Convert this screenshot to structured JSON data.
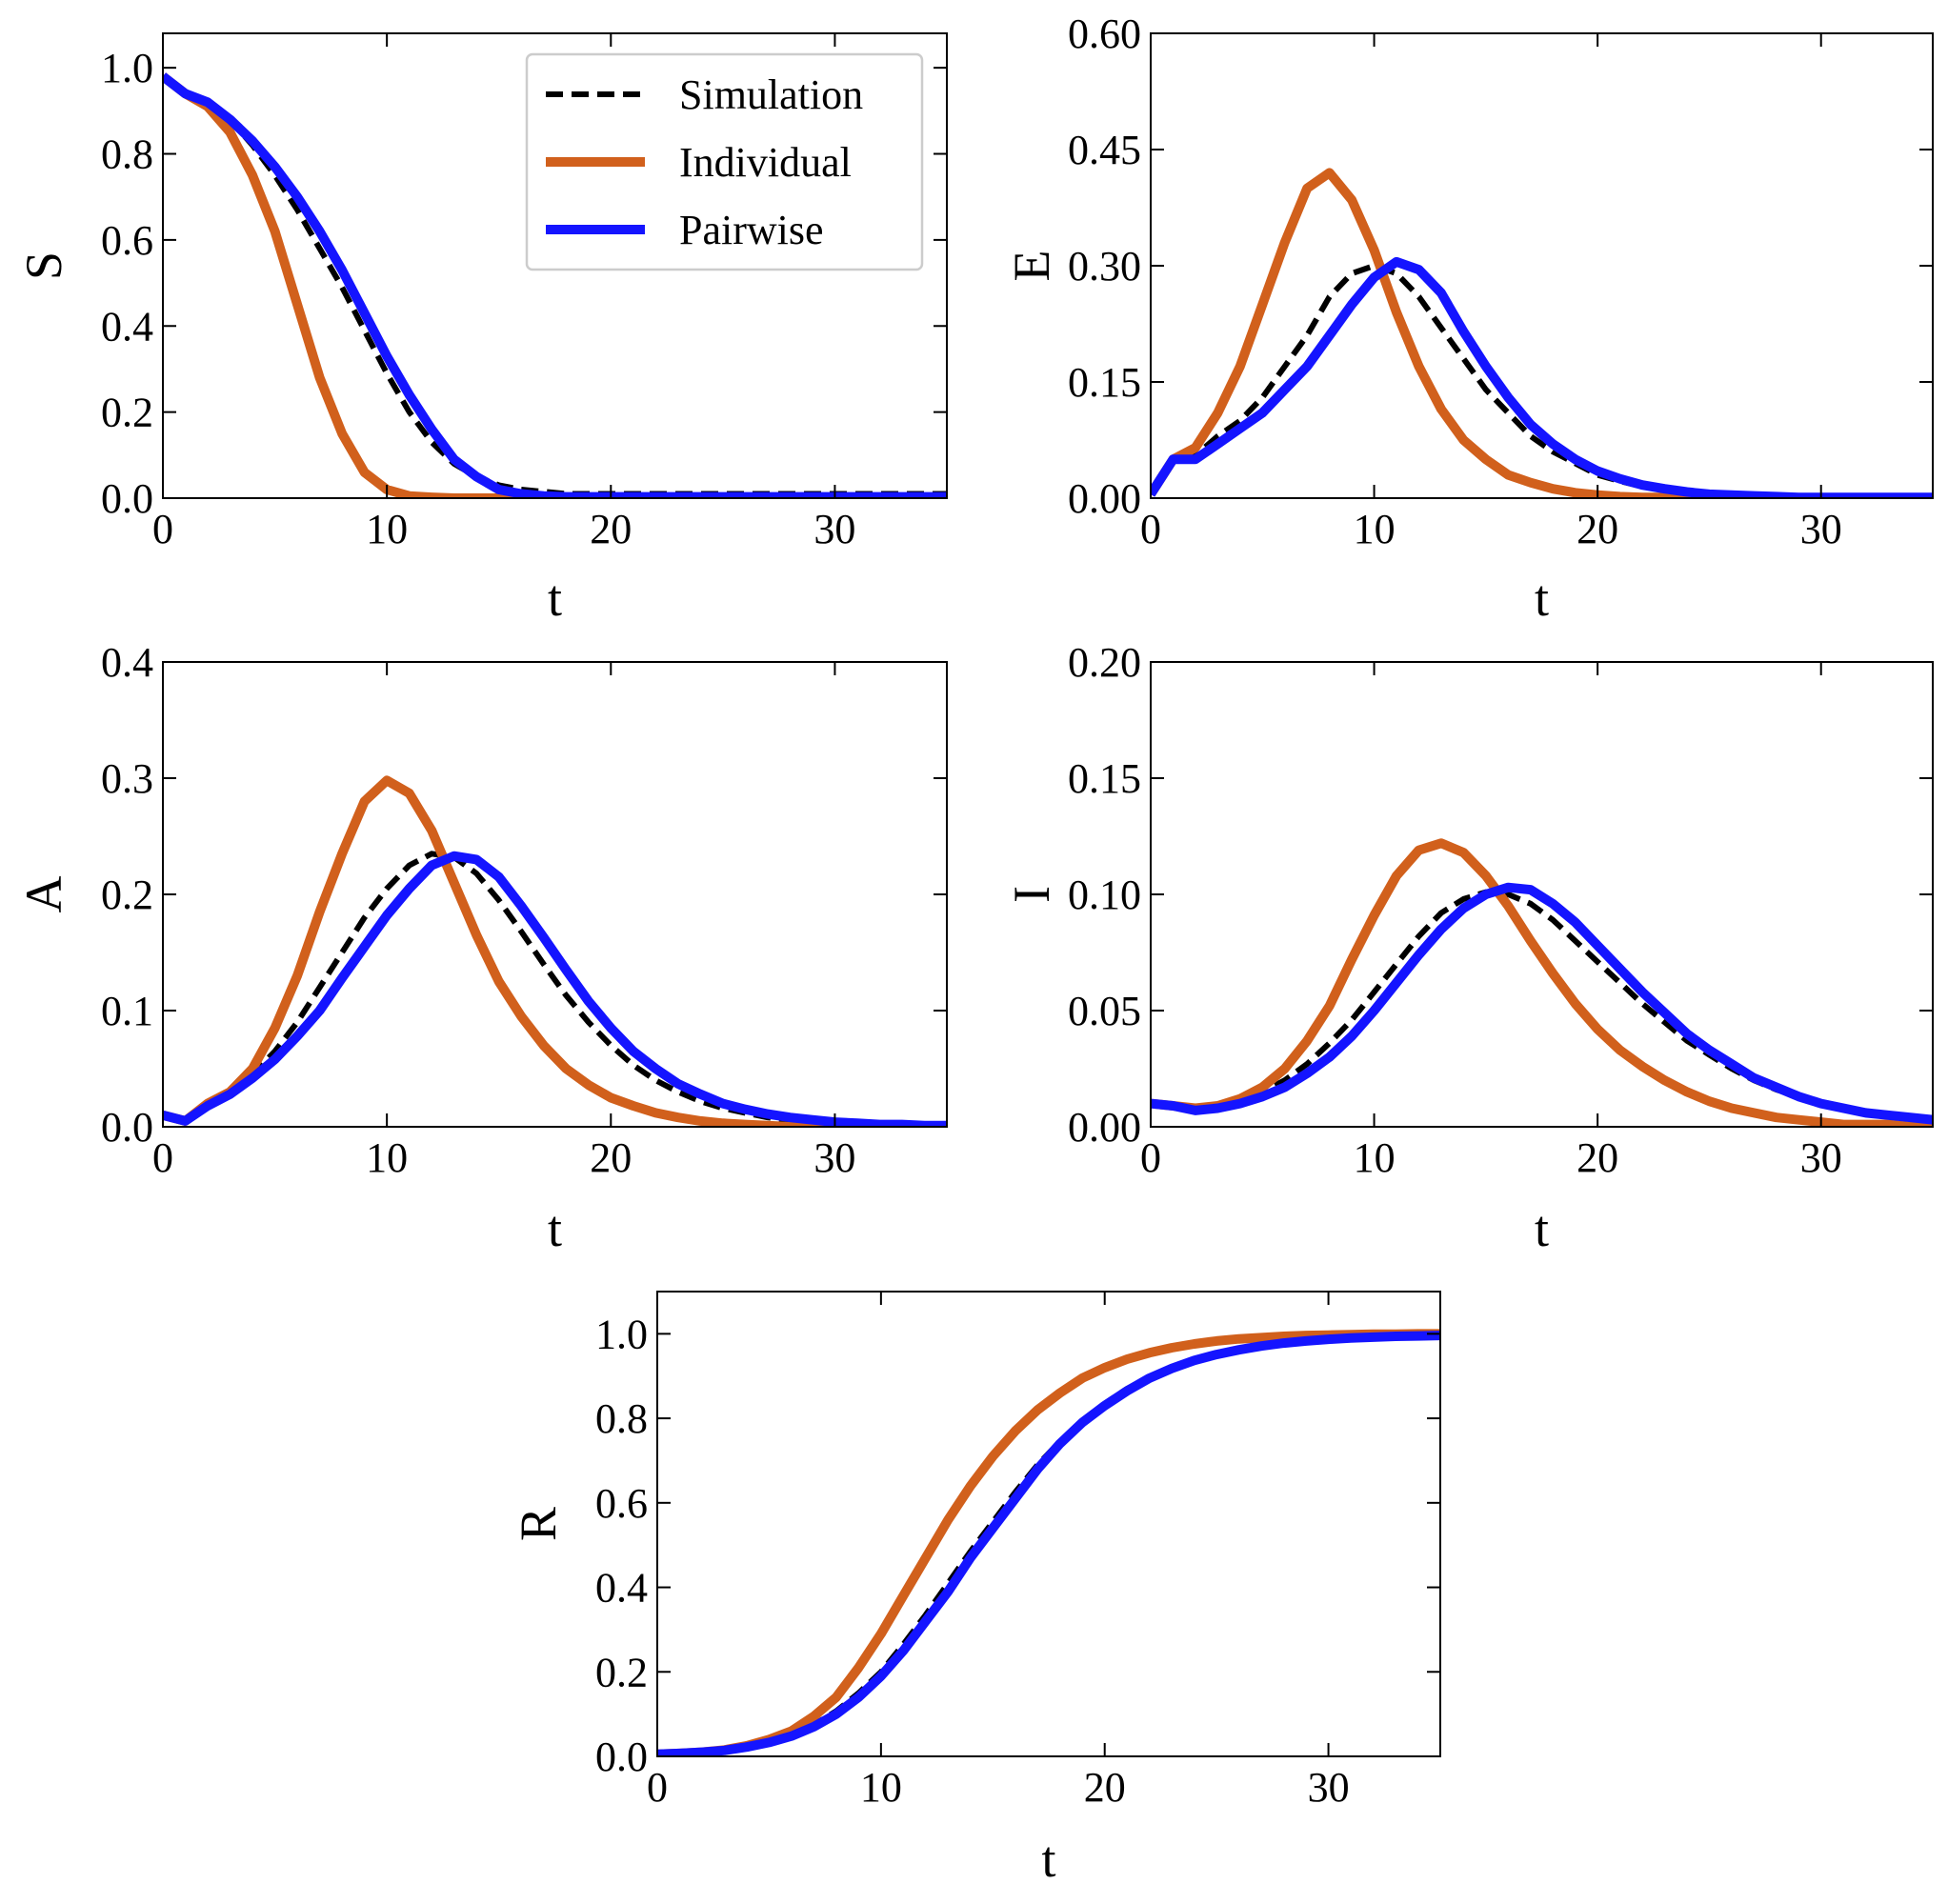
{
  "chart_data": [
    {
      "type": "line",
      "xlabel": "t",
      "ylabel": "S",
      "x": [
        0,
        1,
        2,
        3,
        4,
        5,
        6,
        7,
        8,
        9,
        10,
        11,
        12,
        13,
        14,
        15,
        16,
        17,
        18,
        19,
        20,
        21,
        22,
        23,
        24,
        25,
        26,
        27,
        28,
        29,
        30,
        31,
        32,
        33,
        34,
        35
      ],
      "xlim": [
        0,
        35
      ],
      "ylim": [
        0,
        1.08
      ],
      "xticks": [
        0,
        10,
        20,
        30
      ],
      "yticks": [
        {
          "value": 0,
          "label": "0.0"
        },
        0.2,
        0.4,
        0.6,
        0.8,
        {
          "value": 1,
          "label": "1.0"
        }
      ],
      "legend": "upper right",
      "series": [
        {
          "name": "Simulation",
          "color": "#000000",
          "linestyle": "dashed",
          "values": [
            0.98,
            0.94,
            0.92,
            0.88,
            0.82,
            0.75,
            0.67,
            0.58,
            0.49,
            0.39,
            0.29,
            0.2,
            0.13,
            0.08,
            0.05,
            0.03,
            0.02,
            0.015,
            0.01,
            0.01,
            0.01,
            0.01,
            0.01,
            0.01,
            0.01,
            0.01,
            0.01,
            0.01,
            0.01,
            0.01,
            0.01,
            0.01,
            0.01,
            0.01,
            0.01,
            0.01
          ]
        },
        {
          "name": "Individual",
          "color": "#d1601c",
          "linestyle": "solid",
          "values": [
            0.98,
            0.94,
            0.91,
            0.85,
            0.75,
            0.62,
            0.45,
            0.28,
            0.15,
            0.06,
            0.02,
            0.005,
            0.002,
            0,
            0,
            0,
            0,
            0,
            0,
            0,
            0,
            0,
            0,
            0,
            0,
            0,
            0,
            0,
            0,
            0,
            0,
            0,
            0,
            0,
            0,
            0
          ]
        },
        {
          "name": "Pairwise",
          "color": "#1414ff",
          "linestyle": "solid",
          "values": [
            0.98,
            0.94,
            0.92,
            0.88,
            0.83,
            0.77,
            0.7,
            0.62,
            0.53,
            0.43,
            0.33,
            0.24,
            0.16,
            0.09,
            0.05,
            0.02,
            0.01,
            0.005,
            0.003,
            0.003,
            0.003,
            0.003,
            0.003,
            0.003,
            0.003,
            0.003,
            0.003,
            0.003,
            0.003,
            0.003,
            0.003,
            0.003,
            0.003,
            0.003,
            0.003,
            0.003
          ]
        }
      ]
    },
    {
      "type": "line",
      "xlabel": "t",
      "ylabel": "E",
      "x": [
        0,
        1,
        2,
        3,
        4,
        5,
        6,
        7,
        8,
        9,
        10,
        11,
        12,
        13,
        14,
        15,
        16,
        17,
        18,
        19,
        20,
        21,
        22,
        23,
        24,
        25,
        26,
        27,
        28,
        29,
        30,
        31,
        32,
        33,
        34,
        35
      ],
      "xlim": [
        0,
        35
      ],
      "ylim": [
        0,
        0.6
      ],
      "xticks": [
        0,
        10,
        20,
        30
      ],
      "yticks": [
        {
          "value": 0,
          "label": "0.00"
        },
        0.15,
        {
          "value": 0.3,
          "label": "0.30"
        },
        0.45,
        {
          "value": 0.6,
          "label": "0.60"
        }
      ],
      "series": [
        {
          "color": "#000000",
          "linestyle": "dashed",
          "values": [
            0.005,
            0.05,
            0.055,
            0.08,
            0.1,
            0.13,
            0.17,
            0.21,
            0.26,
            0.29,
            0.3,
            0.29,
            0.26,
            0.22,
            0.18,
            0.14,
            0.11,
            0.08,
            0.06,
            0.045,
            0.03,
            0.022,
            0.015,
            0.01,
            0.007,
            0.005,
            0.003,
            0.002,
            0.002,
            0.001,
            0.001,
            0.001,
            0.001,
            0.001,
            0.001,
            0.001
          ]
        },
        {
          "color": "#d1601c",
          "linestyle": "solid",
          "values": [
            0.005,
            0.05,
            0.065,
            0.11,
            0.17,
            0.25,
            0.33,
            0.4,
            0.42,
            0.385,
            0.32,
            0.24,
            0.17,
            0.115,
            0.075,
            0.05,
            0.03,
            0.02,
            0.012,
            0.007,
            0.004,
            0.002,
            0.001,
            0.001,
            0,
            0,
            0,
            0,
            0,
            0,
            0,
            0,
            0,
            0,
            0,
            0
          ]
        },
        {
          "color": "#1414ff",
          "linestyle": "solid",
          "values": [
            0.005,
            0.05,
            0.05,
            0.07,
            0.09,
            0.11,
            0.14,
            0.17,
            0.21,
            0.25,
            0.285,
            0.305,
            0.295,
            0.265,
            0.215,
            0.17,
            0.13,
            0.095,
            0.07,
            0.05,
            0.035,
            0.025,
            0.017,
            0.012,
            0.008,
            0.005,
            0.004,
            0.003,
            0.002,
            0.001,
            0.001,
            0.001,
            0.001,
            0.001,
            0.001,
            0.001
          ]
        }
      ]
    },
    {
      "type": "line",
      "xlabel": "t",
      "ylabel": "A",
      "x": [
        0,
        1,
        2,
        3,
        4,
        5,
        6,
        7,
        8,
        9,
        10,
        11,
        12,
        13,
        14,
        15,
        16,
        17,
        18,
        19,
        20,
        21,
        22,
        23,
        24,
        25,
        26,
        27,
        28,
        29,
        30,
        31,
        32,
        33,
        34,
        35
      ],
      "xlim": [
        0,
        35
      ],
      "ylim": [
        0,
        0.4
      ],
      "xticks": [
        0,
        10,
        20,
        30
      ],
      "yticks": [
        {
          "value": 0,
          "label": "0.0"
        },
        0.1,
        0.2,
        0.3,
        0.4
      ],
      "series": [
        {
          "color": "#000000",
          "linestyle": "dashed",
          "values": [
            0.01,
            0.005,
            0.02,
            0.03,
            0.045,
            0.065,
            0.09,
            0.12,
            0.15,
            0.18,
            0.205,
            0.225,
            0.235,
            0.232,
            0.218,
            0.195,
            0.168,
            0.14,
            0.113,
            0.09,
            0.07,
            0.053,
            0.04,
            0.03,
            0.022,
            0.016,
            0.012,
            0.008,
            0.006,
            0.004,
            0.003,
            0.002,
            0.002,
            0.001,
            0.001,
            0.001
          ]
        },
        {
          "color": "#d1601c",
          "linestyle": "solid",
          "values": [
            0.01,
            0.005,
            0.02,
            0.03,
            0.05,
            0.085,
            0.13,
            0.185,
            0.235,
            0.28,
            0.298,
            0.287,
            0.255,
            0.21,
            0.165,
            0.125,
            0.095,
            0.07,
            0.05,
            0.036,
            0.025,
            0.018,
            0.012,
            0.008,
            0.005,
            0.003,
            0.002,
            0.001,
            0,
            0,
            0,
            0,
            0,
            0,
            0,
            0
          ]
        },
        {
          "color": "#1414ff",
          "linestyle": "solid",
          "values": [
            0.01,
            0.005,
            0.018,
            0.028,
            0.042,
            0.058,
            0.078,
            0.1,
            0.128,
            0.155,
            0.182,
            0.205,
            0.225,
            0.233,
            0.23,
            0.215,
            0.19,
            0.163,
            0.135,
            0.108,
            0.085,
            0.065,
            0.05,
            0.037,
            0.028,
            0.02,
            0.015,
            0.011,
            0.008,
            0.006,
            0.004,
            0.003,
            0.002,
            0.002,
            0.001,
            0.001
          ]
        }
      ]
    },
    {
      "type": "line",
      "xlabel": "t",
      "ylabel": "I",
      "x": [
        0,
        1,
        2,
        3,
        4,
        5,
        6,
        7,
        8,
        9,
        10,
        11,
        12,
        13,
        14,
        15,
        16,
        17,
        18,
        19,
        20,
        21,
        22,
        23,
        24,
        25,
        26,
        27,
        28,
        29,
        30,
        31,
        32,
        33,
        34,
        35
      ],
      "xlim": [
        0,
        35
      ],
      "ylim": [
        0,
        0.2
      ],
      "xticks": [
        0,
        10,
        20,
        30
      ],
      "yticks": [
        {
          "value": 0,
          "label": "0.00"
        },
        0.05,
        {
          "value": 0.1,
          "label": "0.10"
        },
        0.15,
        {
          "value": 0.2,
          "label": "0.20"
        }
      ],
      "series": [
        {
          "color": "#000000",
          "linestyle": "dashed",
          "values": [
            0.01,
            0.009,
            0.008,
            0.009,
            0.011,
            0.015,
            0.02,
            0.027,
            0.036,
            0.046,
            0.058,
            0.07,
            0.082,
            0.092,
            0.098,
            0.101,
            0.1,
            0.096,
            0.089,
            0.08,
            0.071,
            0.062,
            0.053,
            0.045,
            0.037,
            0.031,
            0.025,
            0.02,
            0.016,
            0.013,
            0.01,
            0.008,
            0.006,
            0.005,
            0.004,
            0.003
          ]
        },
        {
          "color": "#d1601c",
          "linestyle": "solid",
          "values": [
            0.01,
            0.009,
            0.008,
            0.009,
            0.012,
            0.017,
            0.025,
            0.037,
            0.052,
            0.072,
            0.091,
            0.108,
            0.119,
            0.122,
            0.118,
            0.108,
            0.095,
            0.08,
            0.066,
            0.053,
            0.042,
            0.033,
            0.026,
            0.02,
            0.015,
            0.011,
            0.008,
            0.006,
            0.004,
            0.003,
            0.002,
            0.001,
            0.001,
            0.001,
            0,
            0
          ]
        },
        {
          "color": "#1414ff",
          "linestyle": "solid",
          "values": [
            0.01,
            0.009,
            0.007,
            0.008,
            0.01,
            0.013,
            0.017,
            0.023,
            0.03,
            0.039,
            0.05,
            0.062,
            0.074,
            0.085,
            0.094,
            0.1,
            0.103,
            0.102,
            0.096,
            0.088,
            0.078,
            0.068,
            0.058,
            0.049,
            0.04,
            0.033,
            0.027,
            0.021,
            0.017,
            0.013,
            0.01,
            0.008,
            0.006,
            0.005,
            0.004,
            0.003
          ]
        }
      ]
    },
    {
      "type": "line",
      "xlabel": "t",
      "ylabel": "R",
      "x": [
        0,
        1,
        2,
        3,
        4,
        5,
        6,
        7,
        8,
        9,
        10,
        11,
        12,
        13,
        14,
        15,
        16,
        17,
        18,
        19,
        20,
        21,
        22,
        23,
        24,
        25,
        26,
        27,
        28,
        29,
        30,
        31,
        32,
        33,
        34,
        35
      ],
      "xlim": [
        0,
        35
      ],
      "ylim": [
        0,
        1.1
      ],
      "xticks": [
        0,
        10,
        20,
        30
      ],
      "yticks": [
        {
          "value": 0,
          "label": "0.0"
        },
        0.2,
        0.4,
        0.6,
        0.8,
        {
          "value": 1,
          "label": "1.0"
        }
      ],
      "series": [
        {
          "color": "#000000",
          "linestyle": "dashed",
          "values": [
            0.005,
            0.007,
            0.01,
            0.015,
            0.023,
            0.035,
            0.05,
            0.075,
            0.107,
            0.15,
            0.2,
            0.265,
            0.335,
            0.41,
            0.485,
            0.555,
            0.625,
            0.69,
            0.745,
            0.795,
            0.835,
            0.87,
            0.898,
            0.92,
            0.938,
            0.952,
            0.963,
            0.971,
            0.978,
            0.983,
            0.987,
            0.99,
            0.992,
            0.994,
            0.995,
            0.996
          ]
        },
        {
          "color": "#d1601c",
          "linestyle": "solid",
          "values": [
            0.005,
            0.007,
            0.01,
            0.015,
            0.025,
            0.04,
            0.06,
            0.095,
            0.14,
            0.21,
            0.29,
            0.38,
            0.47,
            0.56,
            0.64,
            0.71,
            0.77,
            0.82,
            0.86,
            0.895,
            0.92,
            0.94,
            0.955,
            0.967,
            0.976,
            0.983,
            0.988,
            0.991,
            0.994,
            0.996,
            0.997,
            0.998,
            0.999,
            0.999,
            1,
            1
          ]
        },
        {
          "color": "#1414ff",
          "linestyle": "solid",
          "values": [
            0.005,
            0.007,
            0.01,
            0.014,
            0.022,
            0.033,
            0.048,
            0.07,
            0.1,
            0.14,
            0.19,
            0.25,
            0.32,
            0.39,
            0.47,
            0.54,
            0.61,
            0.68,
            0.74,
            0.79,
            0.83,
            0.865,
            0.895,
            0.918,
            0.937,
            0.951,
            0.962,
            0.971,
            0.978,
            0.983,
            0.987,
            0.99,
            0.992,
            0.994,
            0.995,
            0.996
          ]
        }
      ]
    }
  ]
}
